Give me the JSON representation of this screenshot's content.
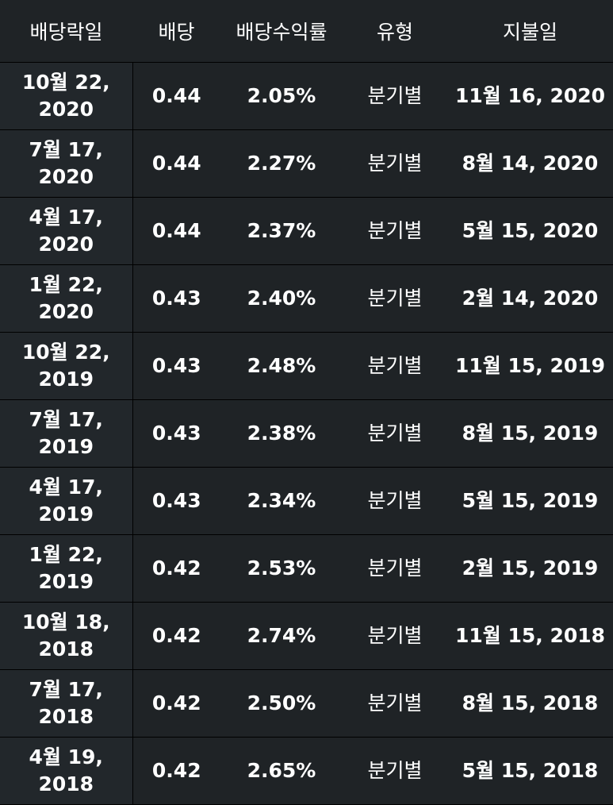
{
  "header": {
    "ex_date": "배당락일",
    "dividend": "배당",
    "yield": "배당수익률",
    "type": "유형",
    "pay_date": "지불일"
  },
  "rows": [
    {
      "ex_date_line1": "10월 22,",
      "ex_date_line2": "2020",
      "dividend": "0.44",
      "yield": "2.05%",
      "type": "분기별",
      "pay_date": "11월 16, 2020"
    },
    {
      "ex_date_line1": "7월 17,",
      "ex_date_line2": "2020",
      "dividend": "0.44",
      "yield": "2.27%",
      "type": "분기별",
      "pay_date": "8월 14, 2020"
    },
    {
      "ex_date_line1": "4월 17,",
      "ex_date_line2": "2020",
      "dividend": "0.44",
      "yield": "2.37%",
      "type": "분기별",
      "pay_date": "5월 15, 2020"
    },
    {
      "ex_date_line1": "1월 22,",
      "ex_date_line2": "2020",
      "dividend": "0.43",
      "yield": "2.40%",
      "type": "분기별",
      "pay_date": "2월 14, 2020"
    },
    {
      "ex_date_line1": "10월 22,",
      "ex_date_line2": "2019",
      "dividend": "0.43",
      "yield": "2.48%",
      "type": "분기별",
      "pay_date": "11월 15, 2019"
    },
    {
      "ex_date_line1": "7월 17,",
      "ex_date_line2": "2019",
      "dividend": "0.43",
      "yield": "2.38%",
      "type": "분기별",
      "pay_date": "8월 15, 2019"
    },
    {
      "ex_date_line1": "4월 17,",
      "ex_date_line2": "2019",
      "dividend": "0.43",
      "yield": "2.34%",
      "type": "분기별",
      "pay_date": "5월 15, 2019"
    },
    {
      "ex_date_line1": "1월 22,",
      "ex_date_line2": "2019",
      "dividend": "0.42",
      "yield": "2.53%",
      "type": "분기별",
      "pay_date": "2월 15, 2019"
    },
    {
      "ex_date_line1": "10월 18,",
      "ex_date_line2": "2018",
      "dividend": "0.42",
      "yield": "2.74%",
      "type": "분기별",
      "pay_date": "11월 15, 2018"
    },
    {
      "ex_date_line1": "7월 17,",
      "ex_date_line2": "2018",
      "dividend": "0.42",
      "yield": "2.50%",
      "type": "분기별",
      "pay_date": "8월 15, 2018"
    },
    {
      "ex_date_line1": "4월 19,",
      "ex_date_line2": "2018",
      "dividend": "0.42",
      "yield": "2.65%",
      "type": "분기별",
      "pay_date": "5월 15, 2018"
    }
  ],
  "colors": {
    "background": "#1f2326",
    "grid": "#000000",
    "text": "#ffffff"
  }
}
